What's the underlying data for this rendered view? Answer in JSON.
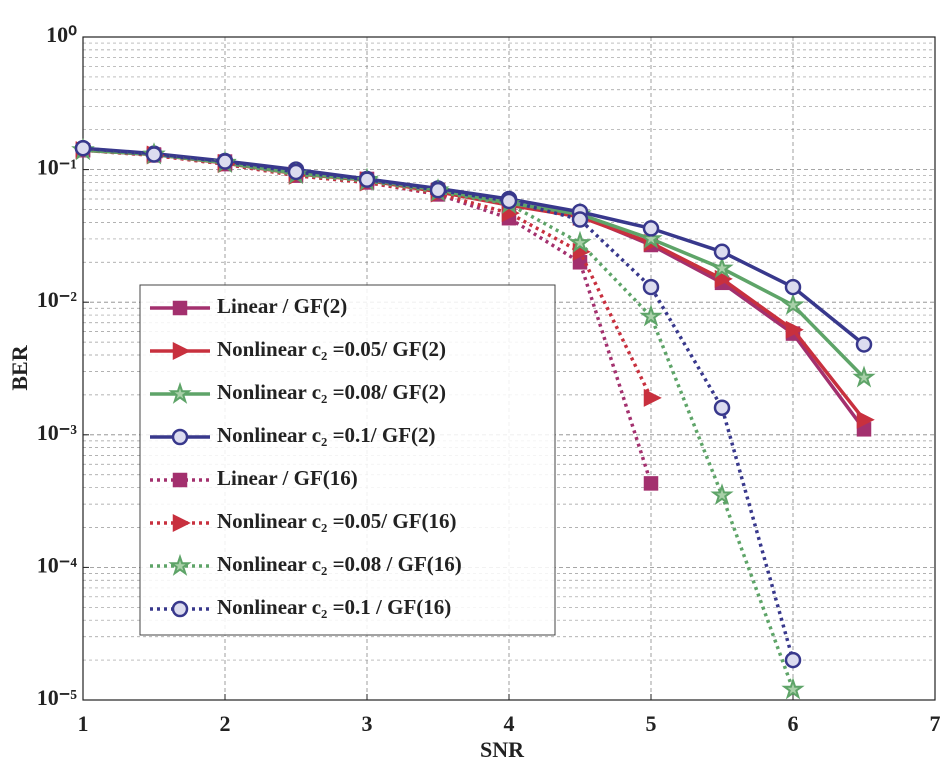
{
  "chart_data": {
    "type": "line",
    "x_label": "SNR",
    "y_label": "BER",
    "log_y": true,
    "grid": true,
    "legend_location": "lower left",
    "xlim": [
      1,
      7
    ],
    "xticks": [
      1,
      2,
      3,
      4,
      5,
      6,
      7
    ],
    "ylim": [
      1e-05,
      1
    ],
    "yticks": [
      {
        "value": 1,
        "label": "10⁰"
      },
      {
        "value": 0.1,
        "label": "10⁻¹"
      },
      {
        "value": 0.01,
        "label": "10⁻²"
      },
      {
        "value": 0.001,
        "label": "10⁻³"
      },
      {
        "value": 0.0001,
        "label": "10⁻⁴"
      },
      {
        "value": 1e-05,
        "label": "10⁻⁵"
      }
    ],
    "series": [
      {
        "name": "Linear / GF(2)",
        "color": "#a3306e",
        "linestyle": "solid",
        "marker": "square",
        "x": [
          1,
          1.5,
          2,
          2.5,
          3,
          3.5,
          4,
          4.5,
          5,
          5.5,
          6,
          6.5
        ],
        "values": [
          0.14,
          0.13,
          0.115,
          0.095,
          0.085,
          0.07,
          0.055,
          0.045,
          0.027,
          0.014,
          0.0058,
          0.0011
        ]
      },
      {
        "name": "Nonlinear c₂ =0.05/ GF(2)",
        "color": "#c8303e",
        "linestyle": "solid",
        "marker": "triangle",
        "x": [
          1,
          1.5,
          2,
          2.5,
          3,
          3.5,
          4,
          4.5,
          5,
          5.5,
          6,
          6.5
        ],
        "values": [
          0.14,
          0.13,
          0.112,
          0.093,
          0.083,
          0.068,
          0.054,
          0.044,
          0.028,
          0.015,
          0.0062,
          0.0013
        ]
      },
      {
        "name": "Nonlinear c₂ =0.08/ GF(2)",
        "color": "#5ea468",
        "linestyle": "solid",
        "marker": "star",
        "x": [
          1,
          1.5,
          2,
          2.5,
          3,
          3.5,
          4,
          4.5,
          5,
          5.5,
          6,
          6.5
        ],
        "values": [
          0.14,
          0.13,
          0.113,
          0.094,
          0.084,
          0.07,
          0.056,
          0.046,
          0.03,
          0.018,
          0.0095,
          0.0027
        ]
      },
      {
        "name": "Nonlinear c₂ =0.1/ GF(2)",
        "color": "#38388c",
        "linestyle": "solid",
        "marker": "circle",
        "x": [
          1,
          1.5,
          2,
          2.5,
          3,
          3.5,
          4,
          4.5,
          5,
          5.5,
          6,
          6.5
        ],
        "values": [
          0.145,
          0.132,
          0.116,
          0.1,
          0.085,
          0.072,
          0.06,
          0.048,
          0.036,
          0.024,
          0.013,
          0.0048
        ]
      },
      {
        "name": "Linear / GF(16)",
        "color": "#a3306e",
        "linestyle": "dotted",
        "marker": "square",
        "x": [
          1,
          1.5,
          2,
          2.5,
          3,
          3.5,
          4,
          4.5,
          5
        ],
        "values": [
          0.14,
          0.128,
          0.11,
          0.09,
          0.08,
          0.065,
          0.043,
          0.02,
          0.00043
        ]
      },
      {
        "name": "Nonlinear c₂ =0.05/ GF(16)",
        "color": "#c8303e",
        "linestyle": "dotted",
        "marker": "triangle",
        "x": [
          1,
          1.5,
          2,
          2.5,
          3,
          3.5,
          4,
          4.5,
          5
        ],
        "values": [
          0.14,
          0.128,
          0.11,
          0.09,
          0.08,
          0.066,
          0.047,
          0.024,
          0.0019
        ]
      },
      {
        "name": "Nonlinear c₂ =0.08 / GF(16)",
        "color": "#5ea468",
        "linestyle": "dotted",
        "marker": "star",
        "x": [
          1,
          1.5,
          2,
          2.5,
          3,
          3.5,
          4,
          4.5,
          5,
          5.5,
          6
        ],
        "values": [
          0.14,
          0.13,
          0.112,
          0.092,
          0.082,
          0.068,
          0.055,
          0.028,
          0.0078,
          0.00035,
          1.2e-05
        ]
      },
      {
        "name": "Nonlinear c₂ =0.1 / GF(16)",
        "color": "#38388c",
        "linestyle": "dotted",
        "marker": "circle",
        "x": [
          1,
          1.5,
          2,
          2.5,
          3,
          3.5,
          4,
          4.5,
          5,
          5.5,
          6
        ],
        "values": [
          0.145,
          0.13,
          0.115,
          0.096,
          0.084,
          0.07,
          0.058,
          0.042,
          0.013,
          0.0016,
          2e-05
        ]
      }
    ]
  }
}
